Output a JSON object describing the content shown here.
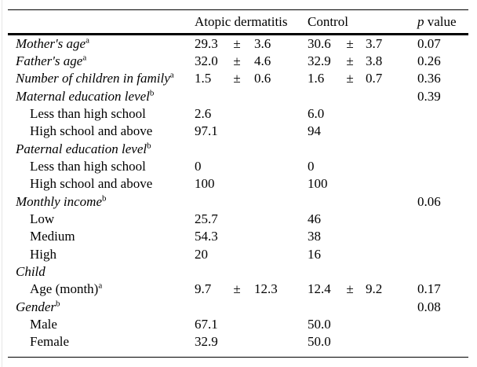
{
  "page": {
    "background": "#ffffff",
    "edge_line_color": "#e6e6e6",
    "text_color": "#000000",
    "rule_color": "#000000"
  },
  "table": {
    "header": {
      "blank": "",
      "atopic": "Atopic dermatitis",
      "control": "Control",
      "p_italic": "p",
      "p_rest": " value"
    },
    "plus_minus_symbol": "±",
    "rows": [
      {
        "type": "category",
        "label": "Mother's age",
        "sup": "a",
        "ad_mean": "29.3",
        "ad_pm": "±",
        "ad_sd": "3.6",
        "c_mean": "30.6",
        "c_pm": "±",
        "c_sd": "3.7",
        "p": "0.07"
      },
      {
        "type": "category",
        "label": "Father's age",
        "sup": "a",
        "ad_mean": "32.0",
        "ad_pm": "±",
        "ad_sd": "4.6",
        "c_mean": "32.9",
        "c_pm": "±",
        "c_sd": "3.8",
        "p": "0.26"
      },
      {
        "type": "category",
        "label": "Number of children in family",
        "sup": "a",
        "ad_mean": "1.5",
        "ad_pm": "±",
        "ad_sd": "0.6",
        "c_mean": "1.6",
        "c_pm": "±",
        "c_sd": "0.7",
        "p": "0.36"
      },
      {
        "type": "category",
        "label": "Maternal education level",
        "sup": "b",
        "p": "0.39"
      },
      {
        "type": "item",
        "label": "Less than high school",
        "ad_mean": "2.6",
        "c_mean": "6.0"
      },
      {
        "type": "item",
        "label": "High school and above",
        "ad_mean": "97.1",
        "c_mean": "94"
      },
      {
        "type": "category",
        "label": "Paternal education level",
        "sup": "b"
      },
      {
        "type": "item",
        "label": "Less than high school",
        "ad_mean": "0",
        "c_mean": "0"
      },
      {
        "type": "item",
        "label": "High school and above",
        "ad_mean": "100",
        "c_mean": "100"
      },
      {
        "type": "category",
        "label": "Monthly income",
        "sup": "b",
        "p": "0.06"
      },
      {
        "type": "item",
        "label": "Low",
        "ad_mean": "25.7",
        "c_mean": "46"
      },
      {
        "type": "item",
        "label": "Medium",
        "ad_mean": "54.3",
        "c_mean": "38"
      },
      {
        "type": "item",
        "label": "High",
        "ad_mean": "20",
        "c_mean": "16"
      },
      {
        "type": "category",
        "label": "Child"
      },
      {
        "type": "item",
        "label": "Age (month)",
        "sup": "a",
        "ad_mean": "9.7",
        "ad_pm": "±",
        "ad_sd": "12.3",
        "c_mean": "12.4",
        "c_pm": "±",
        "c_sd": "9.2",
        "p": "0.17"
      },
      {
        "type": "category",
        "label": "Gender",
        "sup": "b",
        "p": "0.08"
      },
      {
        "type": "item",
        "label": "Male",
        "ad_mean": "67.1",
        "c_mean": "50.0"
      },
      {
        "type": "item",
        "label": "Female",
        "ad_mean": "32.9",
        "c_mean": "50.0"
      }
    ]
  }
}
